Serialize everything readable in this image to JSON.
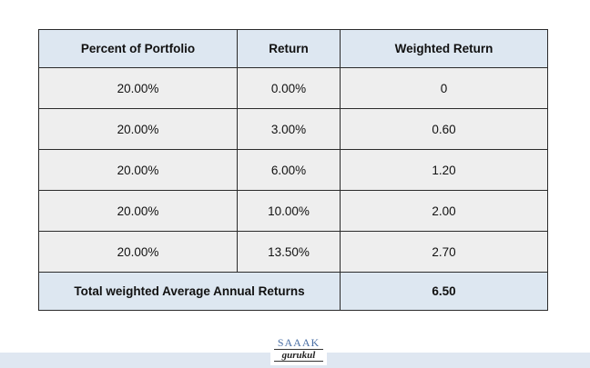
{
  "table": {
    "headers": [
      "Percent of Portfolio",
      "Return",
      "Weighted Return"
    ],
    "rows": [
      [
        "20.00%",
        "0.00%",
        "0"
      ],
      [
        "20.00%",
        "3.00%",
        "0.60"
      ],
      [
        "20.00%",
        "6.00%",
        "1.20"
      ],
      [
        "20.00%",
        "10.00%",
        "2.00"
      ],
      [
        "20.00%",
        "13.50%",
        "2.70"
      ]
    ],
    "total_label": "Total weighted Average Annual Returns",
    "total_value": "6.50"
  },
  "logo": {
    "top_text": "SAAAK",
    "bottom_text": "gurukul"
  }
}
